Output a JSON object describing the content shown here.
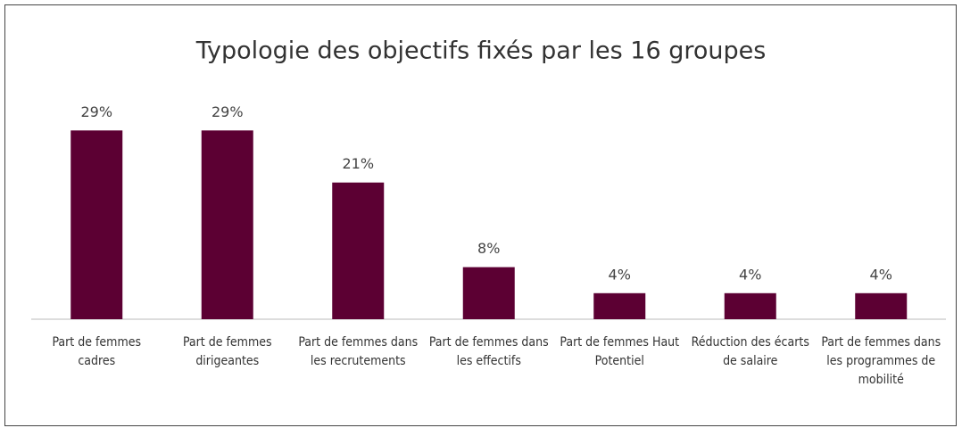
{
  "chart_data": {
    "type": "bar",
    "title": "Typologie des objectifs fixés par les 16 groupes",
    "categories": [
      "Part de femmes cadres",
      "Part de femmes dirigeantes",
      "Part de femmes dans les recrutements",
      "Part de femmes dans les effectifs",
      "Part de femmes Haut Potentiel",
      "Réduction des écarts de salaire",
      "Part de femmes dans les programmes de mobilité"
    ],
    "values": [
      29,
      29,
      21,
      8,
      4,
      4,
      4
    ],
    "value_labels": [
      "29%",
      "29%",
      "21%",
      "8%",
      "4%",
      "4%",
      "4%"
    ],
    "color": "#5c0033"
  }
}
